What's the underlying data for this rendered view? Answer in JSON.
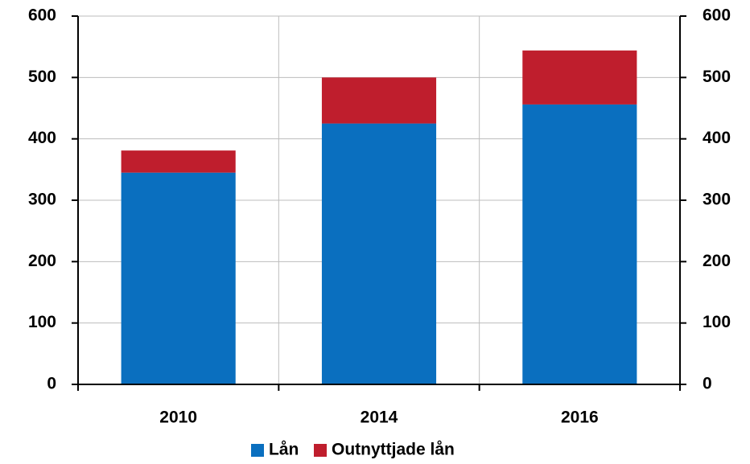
{
  "chart_data": {
    "type": "stacked_bar",
    "categories": [
      "2010",
      "2014",
      "2016"
    ],
    "series": [
      {
        "name": "Lån",
        "color": "#0a6fbf",
        "values": [
          345,
          425,
          456
        ]
      },
      {
        "name": "Outnyttjade lån",
        "color": "#bf1e2d",
        "values": [
          36,
          75,
          88
        ]
      }
    ],
    "ylim": [
      0,
      600
    ],
    "yticks": [
      0,
      100,
      200,
      300,
      400,
      500,
      600
    ],
    "y2lim": [
      0,
      600
    ],
    "y2ticks": [
      0,
      100,
      200,
      300,
      400,
      500,
      600
    ],
    "grid": true,
    "legend": "bottom"
  }
}
